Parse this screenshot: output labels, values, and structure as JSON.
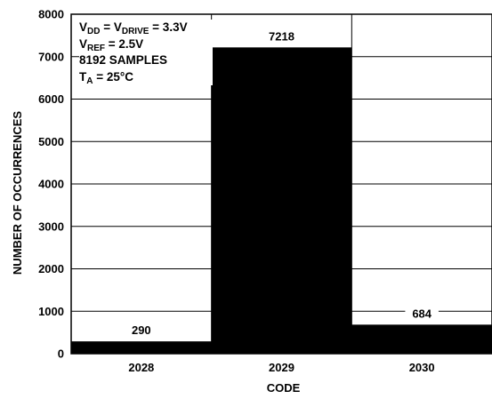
{
  "chart_data": {
    "type": "bar",
    "categories": [
      "2028",
      "2029",
      "2030"
    ],
    "values": [
      290,
      7218,
      684
    ],
    "data_labels": [
      "290",
      "7218",
      "684"
    ],
    "xlabel": "CODE",
    "ylabel": "NUMBER OF OCCURRENCES",
    "ylim": [
      0,
      8000
    ],
    "yticks": [
      "0",
      "1000",
      "2000",
      "3000",
      "4000",
      "5000",
      "6000",
      "7000",
      "8000"
    ],
    "grid": true,
    "bar_color": "#000000",
    "annotations": {
      "line1": {
        "v": "V",
        "dd": "DD",
        "eq": " = V",
        "drive": "DRIVE",
        "val": " = 3.3V"
      },
      "line2": {
        "v": "V",
        "ref": "REF",
        "val": " = 2.5V"
      },
      "line3": "8192 SAMPLES",
      "line4": {
        "t": "T",
        "a": "A",
        "val": " = 25°C"
      }
    }
  }
}
